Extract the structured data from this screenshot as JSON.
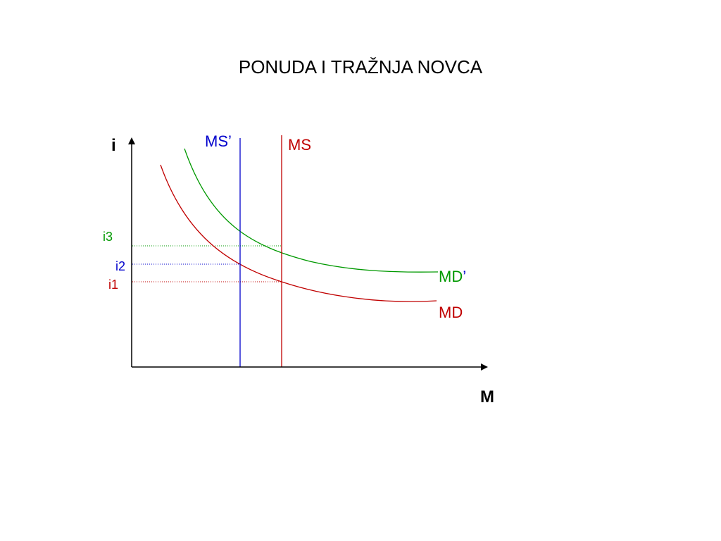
{
  "title": "PONUDA I TRAŽNJA NOVCA",
  "axes": {
    "y_label": "i",
    "x_label": "M"
  },
  "curves": {
    "md_label": "MD",
    "md_prime_label": "MD",
    "md_prime_mark": "’",
    "ms_label": "MS",
    "ms_prime_label": "MS’"
  },
  "rates": {
    "i1": "i1",
    "i2": "i2",
    "i3": "i3"
  },
  "colors": {
    "md": "#c00000",
    "md_prime": "#009900",
    "ms": "#c00000",
    "ms_prime": "#0000cc",
    "axes": "#000000"
  }
}
